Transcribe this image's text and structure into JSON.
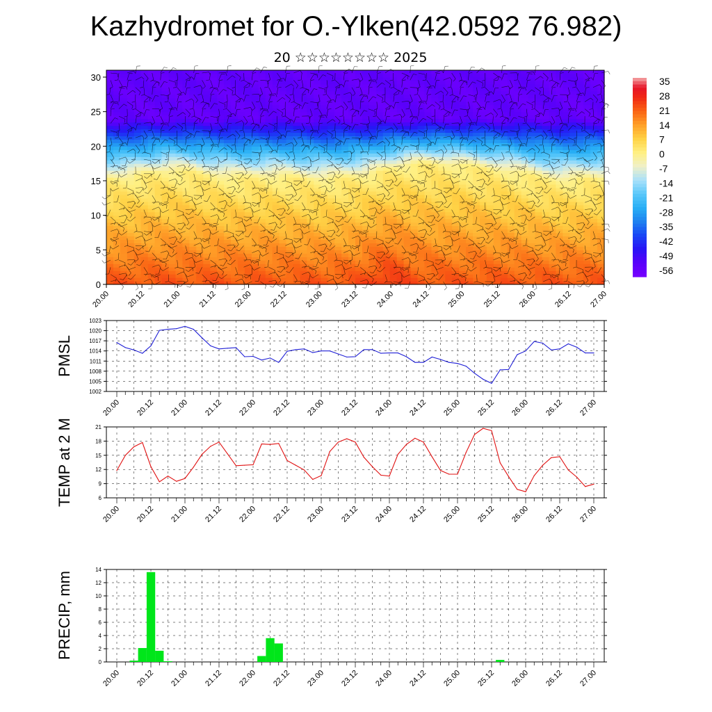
{
  "title": "Kazhydromet for O.-Ylken(42.0592 76.982)",
  "subtitle": "20 ☆☆☆☆☆☆☆☆ 2025",
  "colors": {
    "pmsl_line": "#1f1fd6",
    "temp_line": "#e01010",
    "precip_bar": "#00e61a",
    "grid": "#000000"
  },
  "chart_data": [
    {
      "type": "heatmap",
      "name": "cross-section",
      "xlabel": "",
      "ylabel": "",
      "x_tick_labels": [
        "20.00",
        "20.12",
        "21.00",
        "21.12",
        "22.00",
        "22.12",
        "23.00",
        "23.12",
        "24.00",
        "24.12",
        "25.00",
        "25.12",
        "26.00",
        "26.12",
        "27.00"
      ],
      "y_ticks": [
        0,
        5,
        10,
        15,
        20,
        25,
        30
      ],
      "ylim": [
        0,
        31
      ],
      "colorbar_labels": [
        "35",
        "28",
        "21",
        "14",
        "7",
        "0",
        "-7",
        "-14",
        "-21",
        "-28",
        "-35",
        "-42",
        "-49",
        "-56"
      ],
      "colorbar_range": [
        -63,
        38
      ],
      "has_wind_barbs": true,
      "freezing_level_km": [
        15.2,
        15.5,
        16.0,
        16.5,
        16.3,
        15.8,
        15.5,
        15.4,
        15.6,
        15.5,
        15.3,
        15.2,
        15.4,
        15.8,
        16.5,
        17.2,
        17.5,
        17.4,
        17.2,
        16.8,
        16.5,
        16.0,
        15.4,
        15.0,
        15.2,
        15.3
      ],
      "temp_profile": {
        "surface": 23,
        "lapse_per_km": -5.4,
        "tropopause_km": 22,
        "upper": -58
      }
    },
    {
      "type": "line",
      "name": "pmsl",
      "ylabel": "PMSL",
      "x_tick_labels": [
        "20.00",
        "20.12",
        "21.00",
        "21.12",
        "22.00",
        "22.12",
        "23.00",
        "23.12",
        "24.00",
        "24.12",
        "25.00",
        "25.12",
        "26.00",
        "26.12",
        "27.00"
      ],
      "y_ticks": [
        1002,
        1005,
        1008,
        1011,
        1014,
        1017,
        1020,
        1023
      ],
      "ylim": [
        1002,
        1023
      ],
      "x_hours": [
        0,
        3,
        6,
        9,
        12,
        15,
        18,
        21,
        24,
        27,
        30,
        33,
        36,
        39,
        42,
        45,
        48,
        51,
        54,
        57,
        60,
        63,
        66,
        69,
        72,
        75,
        78,
        81,
        84,
        87,
        90,
        93,
        96,
        99,
        102,
        105,
        108,
        111,
        114,
        117,
        120,
        123,
        126,
        129,
        132,
        135,
        138,
        141,
        144,
        147,
        150,
        153,
        156,
        159,
        162,
        165,
        168
      ],
      "values": [
        1016.5,
        1015.0,
        1014.3,
        1013.3,
        1015.5,
        1020.1,
        1020.4,
        1020.6,
        1021.3,
        1020.4,
        1017.9,
        1015.5,
        1014.6,
        1014.8,
        1015.0,
        1012.3,
        1012.4,
        1011.3,
        1011.9,
        1010.6,
        1013.9,
        1014.4,
        1014.6,
        1013.5,
        1014.0,
        1014.0,
        1013.1,
        1012.2,
        1012.3,
        1014.4,
        1014.4,
        1013.3,
        1013.4,
        1013.4,
        1012.3,
        1010.6,
        1010.6,
        1012.2,
        1011.5,
        1010.6,
        1010.3,
        1009.5,
        1007.4,
        1005.6,
        1004.4,
        1008.4,
        1008.5,
        1012.9,
        1014.0,
        1016.8,
        1016.3,
        1014.3,
        1014.6,
        1016.1,
        1015.1,
        1013.4,
        1013.4
      ],
      "grid": true
    },
    {
      "type": "line",
      "name": "temp2m",
      "ylabel": "TEMP at 2 M",
      "x_tick_labels": [
        "20.00",
        "20.12",
        "21.00",
        "21.12",
        "22.00",
        "22.12",
        "23.00",
        "23.12",
        "24.00",
        "24.12",
        "25.00",
        "25.12",
        "26.00",
        "26.12",
        "27.00"
      ],
      "y_ticks": [
        6,
        9,
        12,
        15,
        18,
        21
      ],
      "ylim": [
        6,
        21
      ],
      "x_hours": [
        0,
        3,
        6,
        9,
        12,
        15,
        18,
        21,
        24,
        27,
        30,
        33,
        36,
        39,
        42,
        45,
        48,
        51,
        54,
        57,
        60,
        63,
        66,
        69,
        72,
        75,
        78,
        81,
        84,
        87,
        90,
        93,
        96,
        99,
        102,
        105,
        108,
        111,
        114,
        117,
        120,
        123,
        126,
        129,
        132,
        135,
        138,
        141,
        144,
        147,
        150,
        153,
        156,
        159,
        162,
        165,
        168
      ],
      "values": [
        11.8,
        15.0,
        16.8,
        17.7,
        12.6,
        9.4,
        10.6,
        9.5,
        10.1,
        12.5,
        15.2,
        16.9,
        17.8,
        15.3,
        12.8,
        12.9,
        13.0,
        17.4,
        17.3,
        17.5,
        13.9,
        12.9,
        11.9,
        9.9,
        10.7,
        15.8,
        17.8,
        18.5,
        17.8,
        14.6,
        12.6,
        10.8,
        10.6,
        15.2,
        17.3,
        18.6,
        17.8,
        14.7,
        11.8,
        11.0,
        11.0,
        15.6,
        19.4,
        20.7,
        20.2,
        13.4,
        10.5,
        7.8,
        7.3,
        10.7,
        12.9,
        14.5,
        14.7,
        11.9,
        10.4,
        8.4,
        8.9
      ],
      "grid": true
    },
    {
      "type": "bar",
      "name": "precip",
      "ylabel": "PRECIP, mm",
      "x_tick_labels": [
        "20.00",
        "20.12",
        "21.00",
        "21.12",
        "22.00",
        "22.12",
        "23.00",
        "23.12",
        "24.00",
        "24.12",
        "25.00",
        "25.12",
        "26.00",
        "26.12",
        "27.00"
      ],
      "y_ticks": [
        0,
        2,
        4,
        6,
        8,
        10,
        12,
        14
      ],
      "ylim": [
        0,
        14
      ],
      "bar_hours": [
        6,
        9,
        12,
        15,
        18,
        51,
        54,
        57,
        135
      ],
      "bar_values": [
        0.2,
        2.1,
        13.6,
        1.7,
        0.1,
        0.9,
        3.6,
        2.8,
        0.3
      ],
      "bar_width_hours": 3,
      "grid": true
    }
  ]
}
